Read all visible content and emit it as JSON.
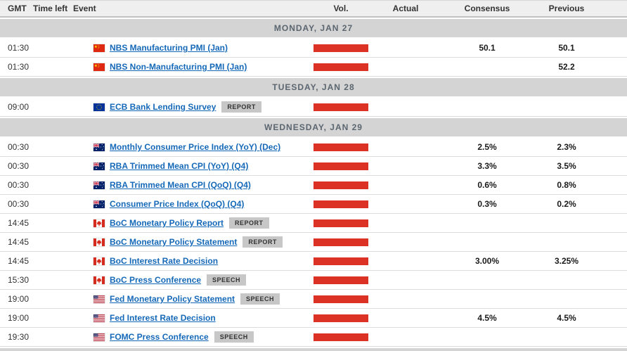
{
  "colors": {
    "volume_bar": "#dc3226",
    "link": "#1569b8",
    "day_band_bg": "#d4d4d4",
    "day_band_text": "#5b6670",
    "badge_bg": "#c7c7c7",
    "header_bg": "#efefef"
  },
  "table": {
    "columns": [
      "GMT",
      "Time left",
      "Event",
      "Vol.",
      "Actual",
      "Consensus",
      "Previous"
    ]
  },
  "rows": [
    {
      "type": "day",
      "label": "MONDAY, JAN 27"
    },
    {
      "type": "event",
      "gmt": "01:30",
      "time_left": "",
      "flag": "china-flag",
      "event": "NBS Manufacturing PMI (Jan)",
      "badge": "",
      "vol": "high",
      "actual": "",
      "consensus": "50.1",
      "previous": "50.1"
    },
    {
      "type": "event",
      "gmt": "01:30",
      "time_left": "",
      "flag": "china-flag",
      "event": "NBS Non-Manufacturing PMI (Jan)",
      "badge": "",
      "vol": "high",
      "actual": "",
      "consensus": "",
      "previous": "52.2"
    },
    {
      "type": "day",
      "label": "TUESDAY, JAN 28"
    },
    {
      "type": "event",
      "gmt": "09:00",
      "time_left": "",
      "flag": "eu-flag",
      "event": "ECB Bank Lending Survey",
      "badge": "REPORT",
      "vol": "high",
      "actual": "",
      "consensus": "",
      "previous": ""
    },
    {
      "type": "day",
      "label": "WEDNESDAY, JAN 29"
    },
    {
      "type": "event",
      "gmt": "00:30",
      "time_left": "",
      "flag": "australia-flag",
      "event": "Monthly Consumer Price Index (YoY) (Dec)",
      "badge": "",
      "vol": "high",
      "actual": "",
      "consensus": "2.5%",
      "previous": "2.3%"
    },
    {
      "type": "event",
      "gmt": "00:30",
      "time_left": "",
      "flag": "australia-flag",
      "event": "RBA Trimmed Mean CPI (YoY) (Q4)",
      "badge": "",
      "vol": "high",
      "actual": "",
      "consensus": "3.3%",
      "previous": "3.5%"
    },
    {
      "type": "event",
      "gmt": "00:30",
      "time_left": "",
      "flag": "australia-flag",
      "event": "RBA Trimmed Mean CPI (QoQ) (Q4)",
      "badge": "",
      "vol": "high",
      "actual": "",
      "consensus": "0.6%",
      "previous": "0.8%"
    },
    {
      "type": "event",
      "gmt": "00:30",
      "time_left": "",
      "flag": "australia-flag",
      "event": "Consumer Price Index (QoQ) (Q4)",
      "badge": "",
      "vol": "high",
      "actual": "",
      "consensus": "0.3%",
      "previous": "0.2%"
    },
    {
      "type": "event",
      "gmt": "14:45",
      "time_left": "",
      "flag": "canada-flag",
      "event": "BoC Monetary Policy Report",
      "badge": "REPORT",
      "vol": "high",
      "actual": "",
      "consensus": "",
      "previous": ""
    },
    {
      "type": "event",
      "gmt": "14:45",
      "time_left": "",
      "flag": "canada-flag",
      "event": "BoC Monetary Policy Statement",
      "badge": "REPORT",
      "vol": "high",
      "actual": "",
      "consensus": "",
      "previous": ""
    },
    {
      "type": "event",
      "gmt": "14:45",
      "time_left": "",
      "flag": "canada-flag",
      "event": "BoC Interest Rate Decision",
      "badge": "",
      "vol": "high",
      "actual": "",
      "consensus": "3.00%",
      "previous": "3.25%"
    },
    {
      "type": "event",
      "gmt": "15:30",
      "time_left": "",
      "flag": "canada-flag",
      "event": "BoC Press Conference",
      "badge": "SPEECH",
      "vol": "high",
      "actual": "",
      "consensus": "",
      "previous": ""
    },
    {
      "type": "event",
      "gmt": "19:00",
      "time_left": "",
      "flag": "us-flag",
      "event": "Fed Monetary Policy Statement",
      "badge": "SPEECH",
      "vol": "high",
      "actual": "",
      "consensus": "",
      "previous": ""
    },
    {
      "type": "event",
      "gmt": "19:00",
      "time_left": "",
      "flag": "us-flag",
      "event": "Fed Interest Rate Decision",
      "badge": "",
      "vol": "high",
      "actual": "",
      "consensus": "4.5%",
      "previous": "4.5%"
    },
    {
      "type": "event",
      "gmt": "19:30",
      "time_left": "",
      "flag": "us-flag",
      "event": "FOMC Press Conference",
      "badge": "SPEECH",
      "vol": "high",
      "actual": "",
      "consensus": "",
      "previous": ""
    }
  ]
}
